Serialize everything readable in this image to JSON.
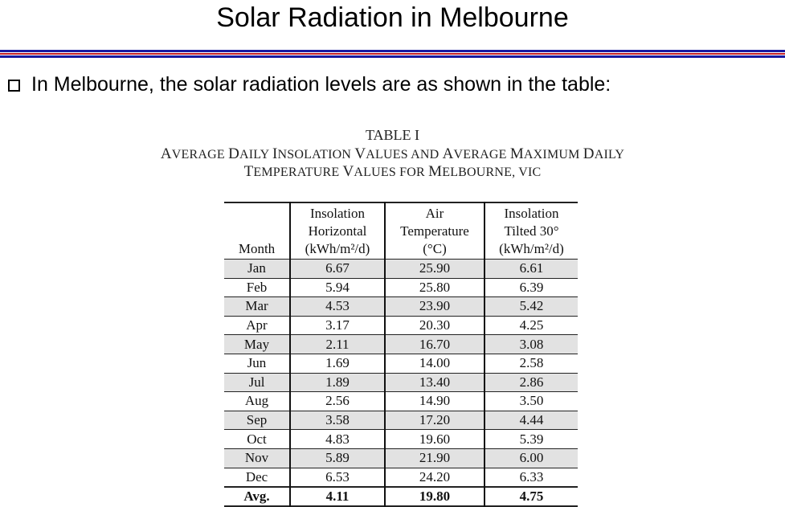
{
  "slide": {
    "title": "Solar Radiation in Melbourne",
    "bullet": "In Melbourne, the solar radiation levels are as shown in the table:"
  },
  "caption": {
    "label": "TABLE I",
    "line2_parts": [
      "A",
      "VERAGE ",
      "D",
      "AILY ",
      "I",
      "NSOLATION ",
      "V",
      "ALUES AND ",
      "A",
      "VERAGE ",
      "M",
      "AXIMUM ",
      "D",
      "AILY"
    ],
    "line3_parts": [
      "T",
      "EMPERATURE ",
      "V",
      "ALUES FOR ",
      "M",
      "ELBOURNE",
      ", VIC"
    ]
  },
  "table": {
    "headers": [
      [
        "Month"
      ],
      [
        "Insolation",
        "Horizontal",
        "(kWh/m²/d)"
      ],
      [
        "Air",
        "Temperature",
        "(°C)"
      ],
      [
        "Insolation",
        "Tilted 30°",
        "(kWh/m²/d)"
      ]
    ],
    "rows": [
      [
        "Jan",
        "6.67",
        "25.90",
        "6.61"
      ],
      [
        "Feb",
        "5.94",
        "25.80",
        "6.39"
      ],
      [
        "Mar",
        "4.53",
        "23.90",
        "5.42"
      ],
      [
        "Apr",
        "3.17",
        "20.30",
        "4.25"
      ],
      [
        "May",
        "2.11",
        "16.70",
        "3.08"
      ],
      [
        "Jun",
        "1.69",
        "14.00",
        "2.58"
      ],
      [
        "Jul",
        "1.89",
        "13.40",
        "2.86"
      ],
      [
        "Aug",
        "2.56",
        "14.90",
        "3.50"
      ],
      [
        "Sep",
        "3.58",
        "17.20",
        "4.44"
      ],
      [
        "Oct",
        "4.83",
        "19.60",
        "5.39"
      ],
      [
        "Nov",
        "5.89",
        "21.90",
        "6.00"
      ],
      [
        "Dec",
        "6.53",
        "24.20",
        "6.33"
      ]
    ],
    "avg": [
      "Avg.",
      "4.11",
      "19.80",
      "4.75"
    ]
  },
  "colors": {
    "rule_blue": "#1a1aa0",
    "rule_red": "#c21f24",
    "row_shade": "#e2e2e2"
  }
}
